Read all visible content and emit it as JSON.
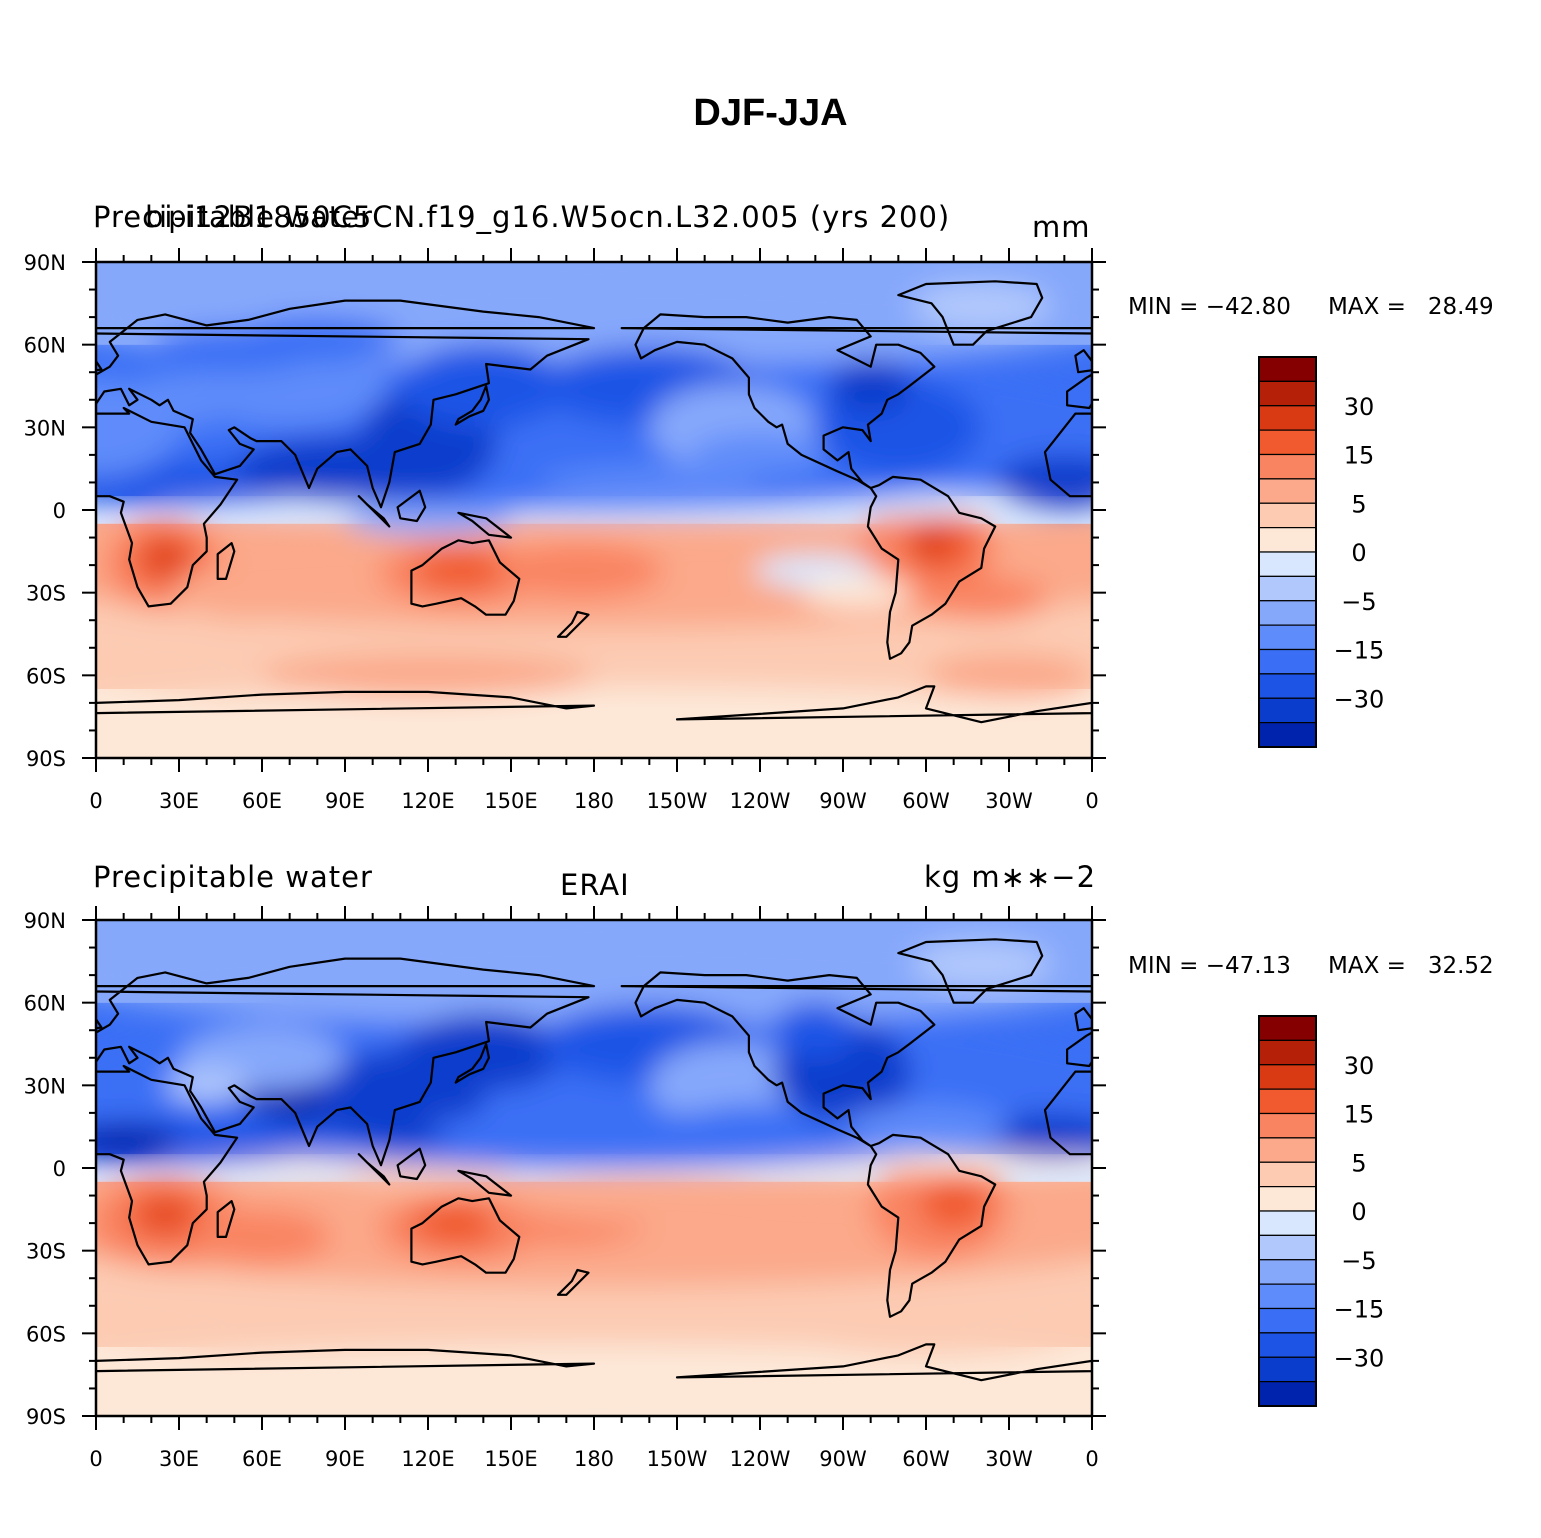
{
  "title": "DJF-JJA",
  "colors": {
    "scale": [
      "#000f8f",
      "#0023ad",
      "#0b3dcc",
      "#1e54e6",
      "#3a6ff5",
      "#5e8cfa",
      "#86a8fb",
      "#b1c8fc",
      "#d8e7fe",
      "#fde8d8",
      "#fccbb2",
      "#fba98a",
      "#f98462",
      "#f05a2e",
      "#d93a14",
      "#b42108",
      "#850000"
    ],
    "coastline": "#000000"
  },
  "panels": [
    {
      "id": "top",
      "left_label": "Precipitable water",
      "center_label": "bi-i12B1850C5CN.f19_g16.W5ocn.L32.005 (yrs 200)",
      "right_label": "mm",
      "min_label": "MIN = −42.80",
      "max_label": "MAX =   28.49"
    },
    {
      "id": "bottom",
      "left_label": "Precipitable water",
      "center_label": "ERAI",
      "right_label": "kg m∗∗−2",
      "min_label": "MIN = −47.13",
      "max_label": "MAX =   32.52"
    }
  ],
  "x_ticks": [
    "0",
    "30E",
    "60E",
    "90E",
    "120E",
    "150E",
    "180",
    "150W",
    "120W",
    "90W",
    "60W",
    "30W",
    "0"
  ],
  "y_ticks": [
    "90N",
    "60N",
    "30N",
    "0",
    "30S",
    "60S",
    "90S"
  ],
  "colorbar_labels": [
    "30",
    "15",
    "5",
    "0",
    "−5",
    "−15",
    "−30"
  ],
  "chart_data": [
    {
      "type": "heatmap",
      "title": "DJF-JJA",
      "variable": "Precipitable water",
      "source": "bi-i12B1850C5CN.f19_g16.W5ocn.L32.005 (yrs 200)",
      "units": "mm",
      "min": -42.8,
      "max": 28.49,
      "xlim": [
        0,
        360
      ],
      "ylim": [
        -90,
        90
      ],
      "x_labels": [
        "0",
        "30E",
        "60E",
        "90E",
        "120E",
        "150E",
        "180",
        "150W",
        "120W",
        "90W",
        "60W",
        "30W",
        "0"
      ],
      "y_labels": [
        "90N",
        "60N",
        "30N",
        "0",
        "30S",
        "60S",
        "90S"
      ],
      "colorbar_levels": [
        -40,
        -30,
        -25,
        -20,
        -15,
        -10,
        -5,
        -2,
        0,
        2,
        5,
        10,
        15,
        20,
        25,
        30
      ]
    },
    {
      "type": "heatmap",
      "title": "DJF-JJA",
      "variable": "Precipitable water",
      "source": "ERAI",
      "units": "kg m∗∗−2",
      "min": -47.13,
      "max": 32.52,
      "xlim": [
        0,
        360
      ],
      "ylim": [
        -90,
        90
      ],
      "x_labels": [
        "0",
        "30E",
        "60E",
        "90E",
        "120E",
        "150E",
        "180",
        "150W",
        "120W",
        "90W",
        "60W",
        "30W",
        "0"
      ],
      "y_labels": [
        "90N",
        "60N",
        "30N",
        "0",
        "30S",
        "60S",
        "90S"
      ],
      "colorbar_levels": [
        -40,
        -30,
        -25,
        -20,
        -15,
        -10,
        -5,
        -2,
        0,
        2,
        5,
        10,
        15,
        20,
        25,
        30
      ]
    }
  ]
}
